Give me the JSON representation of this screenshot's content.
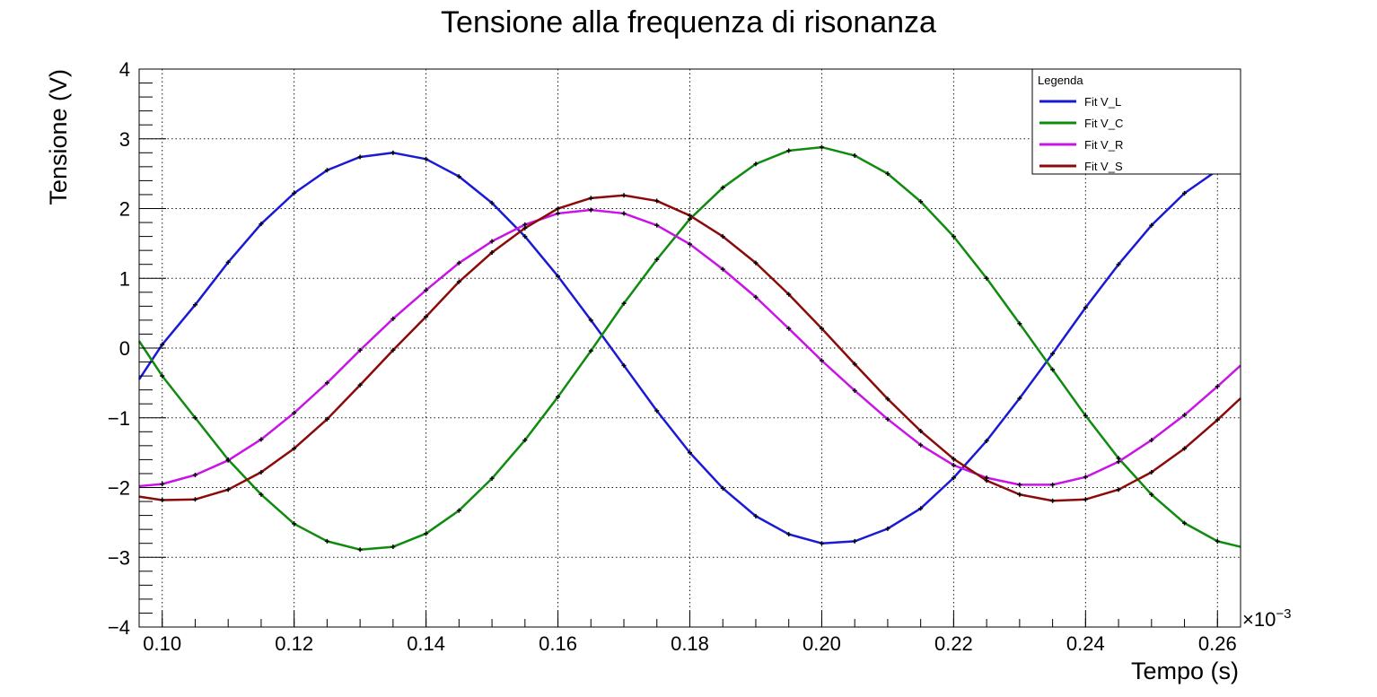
{
  "chart_data": {
    "type": "line",
    "title": "Tensione alla frequenza di risonanza",
    "xlabel": "Tempo (s)",
    "ylabel": "Tensione (V)",
    "x_exponent_label": "×10",
    "x_exponent_power": "−3",
    "xlim": [
      0.0965,
      0.2635
    ],
    "ylim": [
      -4,
      4
    ],
    "x_ticks": [
      0.1,
      0.12,
      0.14,
      0.16,
      0.18,
      0.2,
      0.22,
      0.24,
      0.26
    ],
    "x_tick_labels": [
      "0.10",
      "0.12",
      "0.14",
      "0.16",
      "0.18",
      "0.20",
      "0.22",
      "0.24",
      "0.26"
    ],
    "y_ticks": [
      -4,
      -3,
      -2,
      -1,
      0,
      1,
      2,
      3,
      4
    ],
    "y_tick_labels": [
      "−4",
      "−3",
      "−2",
      "−1",
      "0",
      "1",
      "2",
      "3",
      "4"
    ],
    "grid": true,
    "legend": {
      "title": "Legenda",
      "placement": "top-right"
    },
    "series": [
      {
        "name": "Fit V_L",
        "color": "#1a1ad6",
        "x": [
          0.0965,
          0.1,
          0.105,
          0.11,
          0.115,
          0.12,
          0.125,
          0.13,
          0.135,
          0.14,
          0.145,
          0.15,
          0.155,
          0.16,
          0.165,
          0.17,
          0.175,
          0.18,
          0.185,
          0.19,
          0.195,
          0.2,
          0.205,
          0.21,
          0.215,
          0.22,
          0.225,
          0.23,
          0.235,
          0.24,
          0.245,
          0.25,
          0.255,
          0.26,
          0.2635
        ],
        "y": [
          -0.45,
          0.05,
          0.62,
          1.23,
          1.78,
          2.22,
          2.55,
          2.74,
          2.8,
          2.71,
          2.46,
          2.08,
          1.6,
          1.03,
          0.4,
          -0.25,
          -0.9,
          -1.5,
          -2.01,
          -2.41,
          -2.67,
          -2.8,
          -2.77,
          -2.59,
          -2.3,
          -1.86,
          -1.33,
          -0.72,
          -0.08,
          0.58,
          1.2,
          1.76,
          2.22,
          2.55,
          2.75
        ]
      },
      {
        "name": "Fit V_C",
        "color": "#0f8c0f",
        "x": [
          0.0965,
          0.1,
          0.105,
          0.11,
          0.115,
          0.12,
          0.125,
          0.13,
          0.135,
          0.14,
          0.145,
          0.15,
          0.155,
          0.16,
          0.165,
          0.17,
          0.175,
          0.18,
          0.185,
          0.19,
          0.195,
          0.2,
          0.205,
          0.21,
          0.215,
          0.22,
          0.225,
          0.23,
          0.235,
          0.24,
          0.245,
          0.25,
          0.255,
          0.26,
          0.2635
        ],
        "y": [
          0.1,
          -0.4,
          -1.0,
          -1.6,
          -2.1,
          -2.52,
          -2.77,
          -2.89,
          -2.85,
          -2.66,
          -2.33,
          -1.87,
          -1.32,
          -0.7,
          -0.04,
          0.64,
          1.27,
          1.85,
          2.3,
          2.64,
          2.83,
          2.88,
          2.76,
          2.5,
          2.1,
          1.6,
          1.0,
          0.35,
          -0.31,
          -0.97,
          -1.58,
          -2.1,
          -2.51,
          -2.77,
          -2.85
        ]
      },
      {
        "name": "Fit V_R",
        "color": "#c914e6",
        "x": [
          0.0965,
          0.1,
          0.105,
          0.11,
          0.115,
          0.12,
          0.125,
          0.13,
          0.135,
          0.14,
          0.145,
          0.15,
          0.155,
          0.16,
          0.165,
          0.17,
          0.175,
          0.18,
          0.185,
          0.19,
          0.195,
          0.2,
          0.205,
          0.21,
          0.215,
          0.22,
          0.225,
          0.23,
          0.235,
          0.24,
          0.245,
          0.25,
          0.255,
          0.26,
          0.2635
        ],
        "y": [
          -1.98,
          -1.95,
          -1.82,
          -1.61,
          -1.31,
          -0.93,
          -0.5,
          -0.03,
          0.42,
          0.83,
          1.22,
          1.53,
          1.77,
          1.93,
          1.98,
          1.93,
          1.76,
          1.49,
          1.13,
          0.73,
          0.28,
          -0.18,
          -0.61,
          -1.02,
          -1.39,
          -1.68,
          -1.86,
          -1.96,
          -1.96,
          -1.85,
          -1.63,
          -1.32,
          -0.96,
          -0.55,
          -0.25
        ]
      },
      {
        "name": "Fit V_S",
        "color": "#8b0a0a",
        "x": [
          0.0965,
          0.1,
          0.105,
          0.11,
          0.115,
          0.12,
          0.125,
          0.13,
          0.135,
          0.14,
          0.145,
          0.15,
          0.155,
          0.16,
          0.165,
          0.17,
          0.175,
          0.18,
          0.185,
          0.19,
          0.195,
          0.2,
          0.205,
          0.21,
          0.215,
          0.22,
          0.225,
          0.23,
          0.235,
          0.24,
          0.245,
          0.25,
          0.255,
          0.26,
          0.2635
        ],
        "y": [
          -2.13,
          -2.18,
          -2.17,
          -2.03,
          -1.78,
          -1.44,
          -1.02,
          -0.53,
          -0.03,
          0.45,
          0.95,
          1.37,
          1.72,
          2.0,
          2.15,
          2.19,
          2.11,
          1.9,
          1.6,
          1.22,
          0.77,
          0.28,
          -0.23,
          -0.73,
          -1.19,
          -1.59,
          -1.9,
          -2.1,
          -2.19,
          -2.17,
          -2.03,
          -1.78,
          -1.44,
          -1.03,
          -0.72
        ]
      }
    ]
  }
}
